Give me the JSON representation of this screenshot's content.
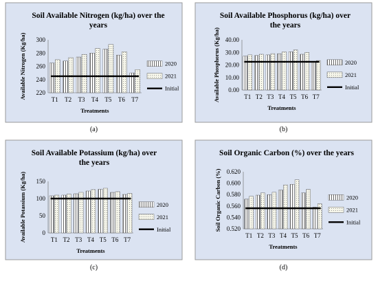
{
  "colors": {
    "panel_bg": "#dbe3f2",
    "panel_border": "#9a9a9a",
    "initial_line": "#000000",
    "bar_outline": "#444444"
  },
  "legend": {
    "s2020": "2020",
    "s2021": "2021",
    "initial": "Initial"
  },
  "chart_data": [
    {
      "type": "bar",
      "title_lines": [
        "Soil Available Nitrogen (kg/ha) over the",
        "years"
      ],
      "xlabel": "Treatments",
      "ylabel": "Available Nitrogen (Kg/ha)",
      "caption": "(a)",
      "ylim": [
        220,
        300
      ],
      "yticks": [
        "220",
        "240",
        "260",
        "280",
        "300"
      ],
      "ytick_values": [
        220,
        240,
        260,
        280,
        300
      ],
      "categories": [
        "T1",
        "T2",
        "T3",
        "T4",
        "T5",
        "T6",
        "T7"
      ],
      "series": [
        {
          "name": "2020",
          "values": [
            265,
            268,
            274,
            280,
            286,
            277,
            250
          ]
        },
        {
          "name": "2021",
          "values": [
            270,
            273,
            278,
            287,
            293,
            282,
            255
          ]
        }
      ],
      "initial": 245
    },
    {
      "type": "bar",
      "title_lines": [
        "Soil Available Phosphorus (kg/ha) over",
        "the years"
      ],
      "xlabel": "Treatments",
      "ylabel": "Available Phosphorus (Kg/ha)",
      "caption": "(b)",
      "ylim": [
        0,
        40
      ],
      "yticks": [
        "0.00",
        "10.00",
        "20.00",
        "30.00",
        "40.00"
      ],
      "ytick_values": [
        0,
        10,
        20,
        30,
        40
      ],
      "categories": [
        "T1",
        "T2",
        "T3",
        "T4",
        "T5",
        "T6",
        "T7"
      ],
      "series": [
        {
          "name": "2020",
          "values": [
            27.0,
            27.5,
            28.0,
            29.0,
            30.5,
            28.5,
            22.5
          ]
        },
        {
          "name": "2021",
          "values": [
            28.0,
            28.5,
            29.0,
            30.5,
            32.0,
            30.0,
            23.5
          ]
        }
      ],
      "initial": 22.5
    },
    {
      "type": "bar",
      "title_lines": [
        "Soil Available Potassium (kg/ha) over",
        "the years"
      ],
      "xlabel": "Treatments",
      "ylabel": "Available Potassium (Kg/ha)",
      "caption": "(c)",
      "ylim": [
        0,
        150
      ],
      "yticks": [
        "0",
        "50",
        "100",
        "150"
      ],
      "ytick_values": [
        0,
        50,
        100,
        150
      ],
      "categories": [
        "T1",
        "T2",
        "T3",
        "T4",
        "T5",
        "T6",
        "T7"
      ],
      "series": [
        {
          "name": "2020",
          "values": [
            108,
            110,
            114,
            122,
            127,
            118,
            112
          ]
        },
        {
          "name": "2021",
          "values": [
            110,
            113,
            118,
            126,
            130,
            120,
            115
          ]
        }
      ],
      "initial": 100
    },
    {
      "type": "bar",
      "title_lines": [
        "Soil Organic Carbon (%) over the years"
      ],
      "xlabel": "Treatments",
      "ylabel": "Soil Organic Carbon (%)",
      "caption": "(d)",
      "ylim": [
        0.52,
        0.62
      ],
      "yticks": [
        "0.520",
        "0.540",
        "0.560",
        "0.580",
        "0.600",
        "0.620"
      ],
      "ytick_values": [
        0.52,
        0.54,
        0.56,
        0.58,
        0.6,
        0.62
      ],
      "categories": [
        "T1",
        "T2",
        "T3",
        "T4",
        "T5",
        "T6",
        "T7"
      ],
      "series": [
        {
          "name": "2020",
          "values": [
            0.572,
            0.579,
            0.58,
            0.588,
            0.598,
            0.583,
            0.558
          ]
        },
        {
          "name": "2021",
          "values": [
            0.577,
            0.583,
            0.584,
            0.597,
            0.606,
            0.589,
            0.564
          ]
        }
      ],
      "initial": 0.556
    }
  ]
}
